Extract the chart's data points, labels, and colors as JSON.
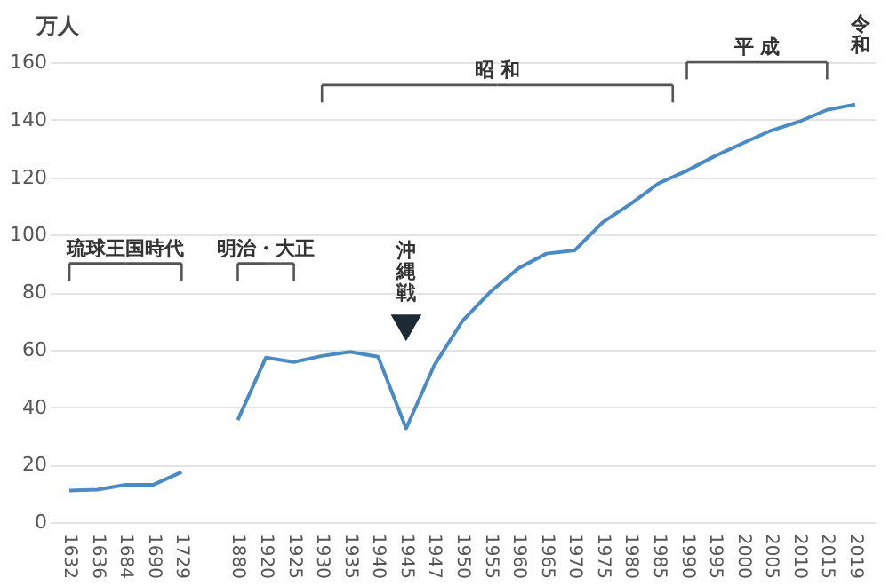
{
  "chart_data": {
    "type": "line",
    "ylabel": "万人",
    "categories": [
      "1632",
      "1636",
      "1684",
      "1690",
      "1729",
      null,
      "1880",
      "1920",
      "1925",
      "1930",
      "1935",
      "1940",
      "1945",
      "1947",
      "1950",
      "1955",
      "1960",
      "1965",
      "1970",
      "1975",
      "1980",
      "1985",
      "1990",
      "1995",
      "2000",
      "2005",
      "2010",
      "2015",
      "2019"
    ],
    "series": [
      {
        "color": "#4a8bc6",
        "values": [
          11,
          11.3,
          13,
          13,
          17.4,
          null,
          35.5,
          57.2,
          55.7,
          57.8,
          59.2,
          57.5,
          32.6,
          54.5,
          69.9,
          80.1,
          88.3,
          93.4,
          94.5,
          104.3,
          110.7,
          117.9,
          122.2,
          127.3,
          131.8,
          136.2,
          139.3,
          143.4,
          145.3
        ]
      }
    ],
    "ylim": [
      0,
      160
    ],
    "yticks": [
      0,
      20,
      40,
      60,
      80,
      100,
      120,
      140,
      160
    ],
    "grid": "y",
    "marker": "none",
    "annotations": [
      "琉球王国時代",
      "明治・大正",
      "昭 和",
      "平 成",
      "令和",
      "沖縄戦"
    ]
  }
}
